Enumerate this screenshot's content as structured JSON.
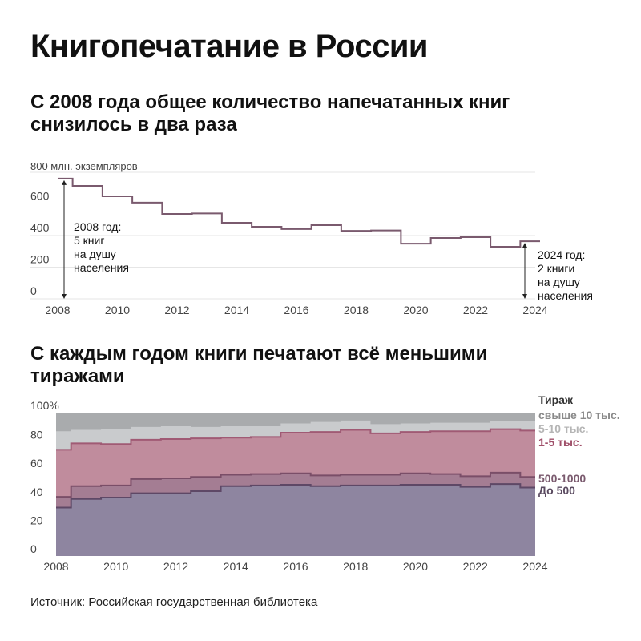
{
  "title": "Книгопечатание в России",
  "subtitle1": [
    "С 2008 года общее количество напечатанных книг",
    "снизилось в два раза"
  ],
  "subtitle2": [
    "С каждым годом книги печатают всё меньшими",
    "тиражами"
  ],
  "source": "Источник: Российская государственная библиотека",
  "chart_data": [
    {
      "type": "line",
      "step": true,
      "ylabel": "800 млн. экземпляров",
      "ylim": [
        0,
        800
      ],
      "yticks": [
        "0",
        "200",
        "400",
        "600"
      ],
      "yticks_values": [
        0,
        200,
        400,
        600,
        800
      ],
      "xticks": [
        "2008",
        "2010",
        "2012",
        "2014",
        "2016",
        "2018",
        "2020",
        "2022",
        "2024"
      ],
      "x": [
        2008,
        2009,
        2010,
        2011,
        2012,
        2013,
        2014,
        2015,
        2016,
        2017,
        2018,
        2019,
        2020,
        2021,
        2022,
        2023,
        2024
      ],
      "values": [
        760,
        714,
        648,
        608,
        537,
        540,
        481,
        456,
        441,
        466,
        430,
        432,
        349,
        385,
        390,
        329,
        364
      ],
      "grid": true,
      "color": "#7a5a6e",
      "annotations": [
        {
          "year": 2008,
          "lines": [
            "2008 год:",
            "5 книг",
            "на душу",
            "населения"
          ]
        },
        {
          "year": 2024,
          "lines": [
            "2024 год:",
            "2 книги",
            "на душу",
            "населения"
          ]
        }
      ]
    },
    {
      "type": "area",
      "stacked": true,
      "step": true,
      "ylim": [
        0,
        100
      ],
      "yticks": [
        "0",
        "20",
        "40",
        "60",
        "80",
        "100%"
      ],
      "xticks": [
        "2008",
        "2010",
        "2012",
        "2014",
        "2016",
        "2018",
        "2020",
        "2022",
        "2024"
      ],
      "x": [
        2008,
        2009,
        2010,
        2011,
        2012,
        2013,
        2014,
        2015,
        2016,
        2017,
        2018,
        2019,
        2020,
        2021,
        2022,
        2023,
        2024
      ],
      "legend_title": "Тираж",
      "legend_placement": "right",
      "series": [
        {
          "name": "До 500",
          "values": [
            34,
            40,
            41,
            44,
            44,
            45.5,
            49,
            49.5,
            50,
            49,
            49.5,
            49.5,
            50,
            50,
            48.5,
            50.5,
            48
          ],
          "color": "#8e85a0",
          "line": "#5e4866",
          "label_color": "#5a4a60"
        },
        {
          "name": "500-1000",
          "values": [
            7.5,
            9,
            8.5,
            10,
            10.5,
            10,
            8,
            8,
            8,
            7.5,
            7.5,
            7.5,
            8,
            7.5,
            7.5,
            8,
            7.5
          ],
          "color": "#a47d93",
          "line": "#7a4e68",
          "label_color": "#7a5a6e"
        },
        {
          "name": "1-5 тыс.",
          "values": [
            33,
            30,
            29,
            27.5,
            27.5,
            27,
            26,
            26,
            28.5,
            30.5,
            31.5,
            29,
            29,
            30,
            31.5,
            30.5,
            32.5
          ],
          "color": "#c08c9d",
          "line": "#a05a74",
          "label_color": "#a0506a"
        },
        {
          "name": "5-10 тыс.",
          "values": [
            13,
            9.5,
            10.5,
            9,
            9,
            8,
            8,
            7.5,
            6.5,
            7,
            6.5,
            6.5,
            6,
            6,
            6,
            5.5,
            6.5
          ],
          "color": "#c9cbcd",
          "line": "#c9cbcd",
          "label_color": "#b5b5b5"
        },
        {
          "name": "свыше 10 тыс.",
          "values": [
            12.5,
            11.5,
            11,
            9.5,
            9,
            9.5,
            9,
            9,
            7,
            6,
            5,
            7.5,
            7,
            6.5,
            6.5,
            5.5,
            5.5
          ],
          "color": "#a9abad",
          "line": "#a9abad",
          "label_color": "#8a8a8a"
        }
      ]
    }
  ]
}
